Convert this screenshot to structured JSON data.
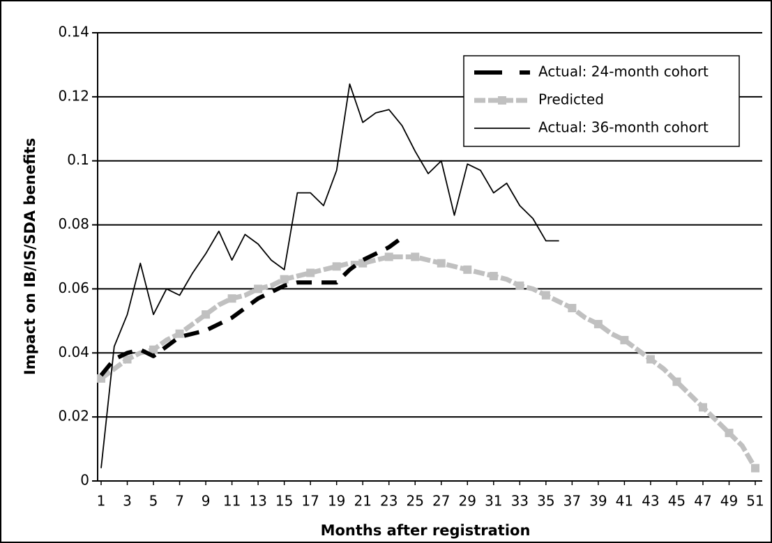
{
  "chart_data": {
    "type": "line",
    "x_label": "Months after registration",
    "y_label": "Impact on IB/IS/SDA benefits",
    "xlim": [
      1,
      51
    ],
    "xticks": [
      1,
      3,
      5,
      7,
      9,
      11,
      13,
      15,
      17,
      19,
      21,
      23,
      25,
      27,
      29,
      31,
      33,
      35,
      37,
      39,
      41,
      43,
      45,
      47,
      49,
      51
    ],
    "ylim": [
      0,
      0.14
    ],
    "yticks": [
      0,
      0.02,
      0.04,
      0.06,
      0.08,
      0.1,
      0.12,
      0.14
    ],
    "grid": true,
    "legend": "upper right",
    "series": [
      {
        "name": "Actual: 24-month cohort",
        "color": "#000000",
        "style": "dashed",
        "x": [
          1,
          2,
          3,
          4,
          5,
          6,
          7,
          8,
          9,
          10,
          11,
          12,
          13,
          14,
          15,
          16,
          17,
          18,
          19,
          20,
          21,
          22,
          23,
          24
        ],
        "values": [
          0.033,
          0.038,
          0.04,
          0.041,
          0.039,
          0.042,
          0.045,
          0.046,
          0.047,
          0.049,
          0.051,
          0.054,
          0.057,
          0.059,
          0.061,
          0.062,
          0.062,
          0.062,
          0.062,
          0.066,
          0.069,
          0.071,
          0.073,
          0.076
        ]
      },
      {
        "name": "Predicted",
        "color": "#c0c0c0",
        "style": "marker",
        "x": [
          1,
          2,
          3,
          4,
          5,
          6,
          7,
          8,
          9,
          10,
          11,
          12,
          13,
          14,
          15,
          16,
          17,
          18,
          19,
          20,
          21,
          22,
          23,
          24,
          25,
          26,
          27,
          28,
          29,
          30,
          31,
          32,
          33,
          34,
          35,
          36,
          37,
          38,
          39,
          40,
          41,
          42,
          43,
          44,
          45,
          46,
          47,
          48,
          49,
          50,
          51
        ],
        "values": [
          0.032,
          0.035,
          0.038,
          0.04,
          0.041,
          0.044,
          0.046,
          0.049,
          0.052,
          0.055,
          0.057,
          0.058,
          0.06,
          0.061,
          0.063,
          0.064,
          0.065,
          0.066,
          0.067,
          0.068,
          0.068,
          0.069,
          0.07,
          0.07,
          0.07,
          0.069,
          0.068,
          0.067,
          0.066,
          0.065,
          0.064,
          0.063,
          0.061,
          0.06,
          0.058,
          0.056,
          0.054,
          0.051,
          0.049,
          0.046,
          0.044,
          0.041,
          0.038,
          0.035,
          0.031,
          0.027,
          0.023,
          0.019,
          0.015,
          0.011,
          0.004
        ]
      },
      {
        "name": "Actual: 36-month cohort",
        "color": "#000000",
        "style": "thin",
        "x": [
          1,
          2,
          3,
          4,
          5,
          6,
          7,
          8,
          9,
          10,
          11,
          12,
          13,
          14,
          15,
          16,
          17,
          18,
          19,
          20,
          21,
          22,
          23,
          24,
          25,
          26,
          27,
          28,
          29,
          30,
          31,
          32,
          33,
          34,
          35,
          36
        ],
        "values": [
          0.004,
          0.042,
          0.052,
          0.068,
          0.052,
          0.06,
          0.058,
          0.065,
          0.071,
          0.078,
          0.069,
          0.077,
          0.074,
          0.069,
          0.066,
          0.09,
          0.09,
          0.086,
          0.097,
          0.124,
          0.112,
          0.115,
          0.116,
          0.111,
          0.103,
          0.096,
          0.1,
          0.083,
          0.099,
          0.097,
          0.09,
          0.093,
          0.086,
          0.082,
          0.075,
          0.075
        ]
      }
    ]
  }
}
